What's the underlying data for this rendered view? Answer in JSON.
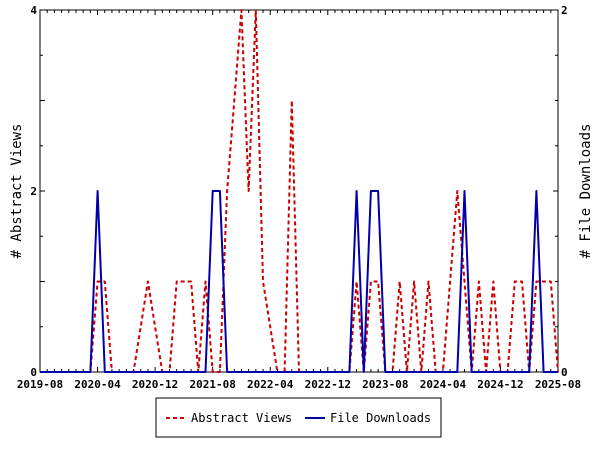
{
  "chart_data": {
    "type": "line",
    "xlabel": "",
    "ylabel_left": "# Abstract Views",
    "ylabel_right": "# File Downloads",
    "x_ticks": [
      "2019-08",
      "2020-04",
      "2020-12",
      "2021-08",
      "2022-04",
      "2022-12",
      "2023-08",
      "2024-04",
      "2024-12",
      "2025-08"
    ],
    "ylim_left": [
      0,
      4
    ],
    "ylim_right": [
      0,
      2
    ],
    "y_ticks_left": [
      0,
      2,
      4
    ],
    "y_ticks_right": [
      0,
      2
    ],
    "grid": false,
    "legend_position": "bottom-center",
    "series": [
      {
        "name": "Abstract Views",
        "axis": "left",
        "color": "#cc0000",
        "style": "dashed",
        "points": [
          [
            "2019-08",
            0
          ],
          [
            "2020-03",
            0
          ],
          [
            "2020-04",
            1
          ],
          [
            "2020-05",
            1
          ],
          [
            "2020-06",
            0
          ],
          [
            "2020-09",
            0
          ],
          [
            "2020-11",
            1
          ],
          [
            "2021-01",
            0
          ],
          [
            "2021-02",
            0
          ],
          [
            "2021-03",
            1
          ],
          [
            "2021-04",
            1
          ],
          [
            "2021-05",
            1
          ],
          [
            "2021-06",
            0
          ],
          [
            "2021-07",
            1
          ],
          [
            "2021-08",
            0
          ],
          [
            "2021-09",
            0
          ],
          [
            "2021-10",
            2
          ],
          [
            "2021-11",
            3
          ],
          [
            "2021-12",
            4
          ],
          [
            "2022-01",
            2
          ],
          [
            "2022-02",
            4
          ],
          [
            "2022-03",
            1
          ],
          [
            "2022-05",
            0
          ],
          [
            "2022-06",
            0
          ],
          [
            "2022-07",
            3
          ],
          [
            "2022-08",
            0
          ],
          [
            "2023-03",
            0
          ],
          [
            "2023-04",
            1
          ],
          [
            "2023-05",
            0
          ],
          [
            "2023-06",
            1
          ],
          [
            "2023-07",
            1
          ],
          [
            "2023-08",
            0
          ],
          [
            "2023-09",
            0
          ],
          [
            "2023-10",
            1
          ],
          [
            "2023-11",
            0
          ],
          [
            "2023-12",
            1
          ],
          [
            "2024-01",
            0
          ],
          [
            "2024-02",
            1
          ],
          [
            "2024-03",
            0
          ],
          [
            "2024-04",
            0
          ],
          [
            "2024-05",
            1
          ],
          [
            "2024-06",
            2
          ],
          [
            "2024-07",
            1
          ],
          [
            "2024-08",
            0
          ],
          [
            "2024-09",
            1
          ],
          [
            "2024-10",
            0
          ],
          [
            "2024-11",
            1
          ],
          [
            "2024-12",
            0
          ],
          [
            "2025-01",
            0
          ],
          [
            "2025-02",
            1
          ],
          [
            "2025-03",
            1
          ],
          [
            "2025-04",
            0
          ],
          [
            "2025-05",
            1
          ],
          [
            "2025-06",
            1
          ],
          [
            "2025-07",
            1
          ],
          [
            "2025-08",
            0
          ]
        ]
      },
      {
        "name": "File Downloads",
        "axis": "right",
        "color": "#0000aa",
        "style": "solid",
        "points": [
          [
            "2019-08",
            0
          ],
          [
            "2020-03",
            0
          ],
          [
            "2020-04",
            1
          ],
          [
            "2020-05",
            0
          ],
          [
            "2021-07",
            0
          ],
          [
            "2021-08",
            1
          ],
          [
            "2021-09",
            1
          ],
          [
            "2021-10",
            0
          ],
          [
            "2023-03",
            0
          ],
          [
            "2023-04",
            1
          ],
          [
            "2023-05",
            0
          ],
          [
            "2023-06",
            1
          ],
          [
            "2023-07",
            1
          ],
          [
            "2023-08",
            0
          ],
          [
            "2024-06",
            0
          ],
          [
            "2024-07",
            1
          ],
          [
            "2024-08",
            0
          ],
          [
            "2025-04",
            0
          ],
          [
            "2025-05",
            1
          ],
          [
            "2025-06",
            0
          ],
          [
            "2025-08",
            0
          ]
        ]
      }
    ]
  }
}
